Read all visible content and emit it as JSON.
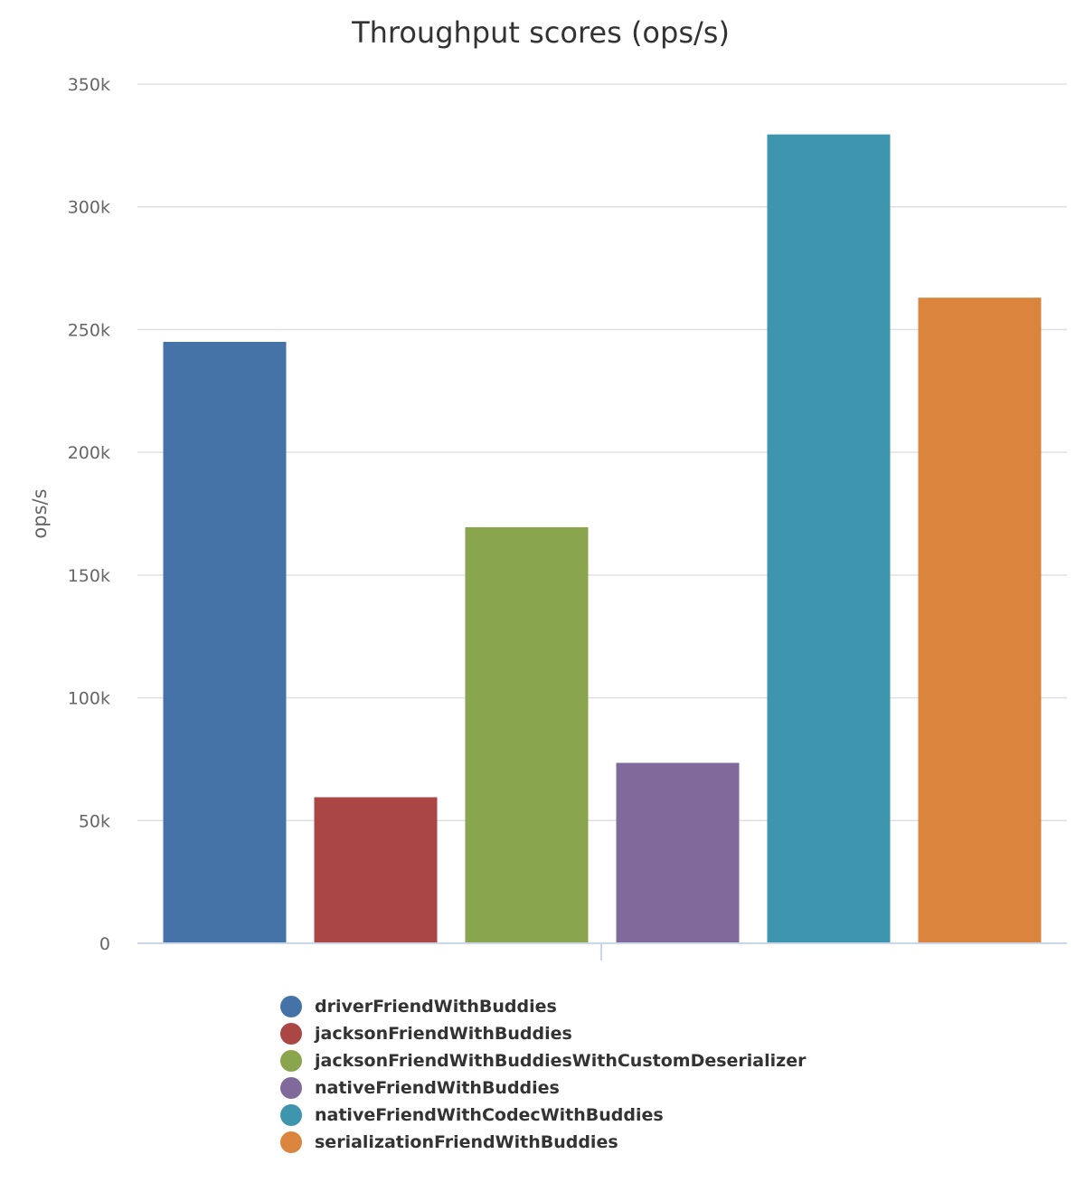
{
  "chart_data": {
    "type": "bar",
    "title": "Throughput scores (ops/s)",
    "ylabel": "ops/s",
    "xlabel": "",
    "ylim": [
      0,
      350000
    ],
    "yticks": [
      0,
      50000,
      100000,
      150000,
      200000,
      250000,
      300000,
      350000
    ],
    "ytick_labels": [
      "0",
      "50k",
      "100k",
      "150k",
      "200k",
      "250k",
      "300k",
      "350k"
    ],
    "grid": true,
    "legend_position": "bottom",
    "series": [
      {
        "name": "driverFriendWithBuddies",
        "value": 245000,
        "color": "#4572a7"
      },
      {
        "name": "jacksonFriendWithBuddies",
        "value": 59500,
        "color": "#aa4643"
      },
      {
        "name": "jacksonFriendWithBuddiesWithCustomDeserializer",
        "value": 169500,
        "color": "#89a54e"
      },
      {
        "name": "nativeFriendWithBuddies",
        "value": 73500,
        "color": "#80699b"
      },
      {
        "name": "nativeFriendWithCodecWithBuddies",
        "value": 329500,
        "color": "#3d96ae"
      },
      {
        "name": "serializationFriendWithBuddies",
        "value": 263000,
        "color": "#db843d"
      }
    ]
  }
}
